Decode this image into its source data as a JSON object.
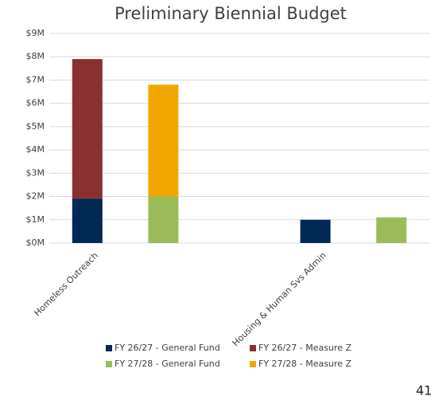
{
  "chart_data": {
    "type": "bar",
    "title": "Preliminary Biennial Budget",
    "categories": [
      "Homeless Outreach",
      null,
      null,
      "Housing & Human Svs Admin",
      null
    ],
    "series": [
      {
        "name": "FY 26/27 - General Fund",
        "color": "#002855",
        "values": [
          1.9,
          null,
          null,
          1.0,
          null
        ]
      },
      {
        "name": "FY 26/27 - Measure Z",
        "color": "#8b3030",
        "values": [
          6.0,
          null,
          null,
          null,
          null
        ]
      },
      {
        "name": "FY 27/28 - General Fund",
        "color": "#9bbb59",
        "values": [
          null,
          2.0,
          null,
          null,
          1.1
        ]
      },
      {
        "name": "FY 27/28 - Measure Z",
        "color": "#f0a800",
        "values": [
          null,
          4.8,
          null,
          null,
          null
        ]
      }
    ],
    "stacked": true,
    "ylim": [
      0,
      9
    ],
    "yticks": [
      {
        "value": 0,
        "label": "$0M"
      },
      {
        "value": 1,
        "label": "$1M"
      },
      {
        "value": 2,
        "label": "$2M"
      },
      {
        "value": 3,
        "label": "$3M"
      },
      {
        "value": 4,
        "label": "$4M"
      },
      {
        "value": 5,
        "label": "$5M"
      },
      {
        "value": 6,
        "label": "$6M"
      },
      {
        "value": 7,
        "label": "$7M"
      },
      {
        "value": 8,
        "label": "$8M"
      },
      {
        "value": 9,
        "label": "$9M"
      }
    ],
    "grid": true,
    "legend": "bottom"
  },
  "page_number": "41"
}
